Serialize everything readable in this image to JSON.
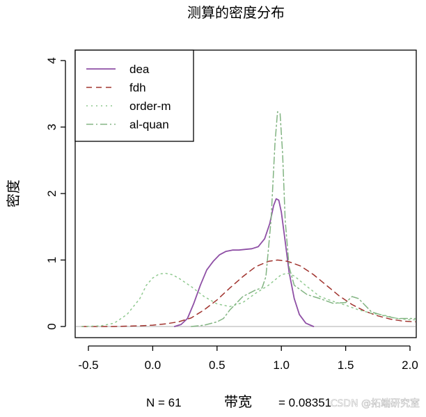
{
  "chart_data": {
    "type": "line",
    "title": "测算的密度分布",
    "ylabel": "密度",
    "xlabel": "",
    "xlim": [
      -0.6,
      2.1
    ],
    "ylim": [
      0,
      4.2
    ],
    "x_ticks": [
      "-0.5",
      "0.0",
      "0.5",
      "1.0",
      "1.5",
      "2.0"
    ],
    "x_tick_values": [
      -0.5,
      0.0,
      0.5,
      1.0,
      1.5,
      2.0
    ],
    "y_ticks": [
      "0",
      "1",
      "2",
      "3",
      "4"
    ],
    "y_tick_values": [
      0,
      1,
      2,
      3,
      4
    ],
    "baseline": 0,
    "legend_position": "top-left",
    "sub": {
      "n": "N = 61",
      "bw_label": "带宽",
      "bw_value": "= 0.08351"
    },
    "series": [
      {
        "name": "dea",
        "color": "#8e4fa5",
        "dash": "solid",
        "points": [
          [
            0.17,
            0.0
          ],
          [
            0.22,
            0.03
          ],
          [
            0.27,
            0.12
          ],
          [
            0.32,
            0.35
          ],
          [
            0.37,
            0.62
          ],
          [
            0.42,
            0.85
          ],
          [
            0.47,
            0.98
          ],
          [
            0.52,
            1.08
          ],
          [
            0.57,
            1.13
          ],
          [
            0.62,
            1.15
          ],
          [
            0.67,
            1.15
          ],
          [
            0.72,
            1.16
          ],
          [
            0.77,
            1.17
          ],
          [
            0.82,
            1.2
          ],
          [
            0.87,
            1.32
          ],
          [
            0.91,
            1.55
          ],
          [
            0.94,
            1.82
          ],
          [
            0.96,
            1.92
          ],
          [
            0.98,
            1.9
          ],
          [
            1.0,
            1.72
          ],
          [
            1.03,
            1.28
          ],
          [
            1.06,
            0.82
          ],
          [
            1.1,
            0.42
          ],
          [
            1.14,
            0.18
          ],
          [
            1.19,
            0.05
          ],
          [
            1.25,
            0.0
          ]
        ]
      },
      {
        "name": "fdh",
        "color": "#a0322d",
        "dash": "8 6",
        "points": [
          [
            -0.55,
            0.0
          ],
          [
            -0.3,
            0.0
          ],
          [
            -0.1,
            0.01
          ],
          [
            0.0,
            0.02
          ],
          [
            0.1,
            0.04
          ],
          [
            0.2,
            0.07
          ],
          [
            0.3,
            0.13
          ],
          [
            0.4,
            0.25
          ],
          [
            0.5,
            0.4
          ],
          [
            0.6,
            0.58
          ],
          [
            0.7,
            0.75
          ],
          [
            0.8,
            0.9
          ],
          [
            0.9,
            0.98
          ],
          [
            0.97,
            1.0
          ],
          [
            1.05,
            0.98
          ],
          [
            1.15,
            0.91
          ],
          [
            1.25,
            0.78
          ],
          [
            1.35,
            0.62
          ],
          [
            1.45,
            0.46
          ],
          [
            1.55,
            0.33
          ],
          [
            1.65,
            0.23
          ],
          [
            1.75,
            0.16
          ],
          [
            1.85,
            0.11
          ],
          [
            1.95,
            0.08
          ],
          [
            2.05,
            0.07
          ],
          [
            2.1,
            0.07
          ]
        ]
      },
      {
        "name": "order-m",
        "color": "#8fc98f",
        "dash": "2 5",
        "points": [
          [
            -0.55,
            0.0
          ],
          [
            -0.4,
            0.01
          ],
          [
            -0.3,
            0.05
          ],
          [
            -0.2,
            0.18
          ],
          [
            -0.1,
            0.42
          ],
          [
            -0.05,
            0.62
          ],
          [
            0.0,
            0.73
          ],
          [
            0.05,
            0.79
          ],
          [
            0.1,
            0.8
          ],
          [
            0.15,
            0.78
          ],
          [
            0.2,
            0.73
          ],
          [
            0.3,
            0.6
          ],
          [
            0.4,
            0.45
          ],
          [
            0.5,
            0.34
          ],
          [
            0.6,
            0.3
          ],
          [
            0.7,
            0.36
          ],
          [
            0.8,
            0.5
          ],
          [
            0.9,
            0.62
          ],
          [
            1.0,
            0.78
          ],
          [
            1.05,
            0.8
          ],
          [
            1.1,
            0.76
          ],
          [
            1.2,
            0.6
          ],
          [
            1.3,
            0.45
          ],
          [
            1.4,
            0.38
          ],
          [
            1.5,
            0.32
          ],
          [
            1.6,
            0.25
          ],
          [
            1.7,
            0.2
          ],
          [
            1.8,
            0.17
          ],
          [
            1.9,
            0.12
          ],
          [
            2.0,
            0.1
          ],
          [
            2.1,
            0.1
          ]
        ]
      },
      {
        "name": "al-quan",
        "color": "#82b482",
        "dash": "10 4 2 4",
        "points": [
          [
            0.3,
            0.0
          ],
          [
            0.4,
            0.02
          ],
          [
            0.5,
            0.07
          ],
          [
            0.55,
            0.12
          ],
          [
            0.6,
            0.25
          ],
          [
            0.65,
            0.35
          ],
          [
            0.7,
            0.45
          ],
          [
            0.75,
            0.5
          ],
          [
            0.8,
            0.55
          ],
          [
            0.85,
            0.58
          ],
          [
            0.88,
            0.75
          ],
          [
            0.92,
            1.6
          ],
          [
            0.95,
            2.75
          ],
          [
            0.97,
            3.23
          ],
          [
            0.99,
            3.2
          ],
          [
            1.01,
            2.6
          ],
          [
            1.03,
            1.6
          ],
          [
            1.06,
            0.9
          ],
          [
            1.1,
            0.62
          ],
          [
            1.2,
            0.48
          ],
          [
            1.3,
            0.42
          ],
          [
            1.4,
            0.35
          ],
          [
            1.5,
            0.36
          ],
          [
            1.55,
            0.45
          ],
          [
            1.6,
            0.42
          ],
          [
            1.7,
            0.22
          ],
          [
            1.8,
            0.16
          ],
          [
            1.9,
            0.12
          ],
          [
            2.0,
            0.12
          ],
          [
            2.1,
            0.12
          ]
        ]
      }
    ]
  },
  "watermark": "CSDN @拓端研究室"
}
